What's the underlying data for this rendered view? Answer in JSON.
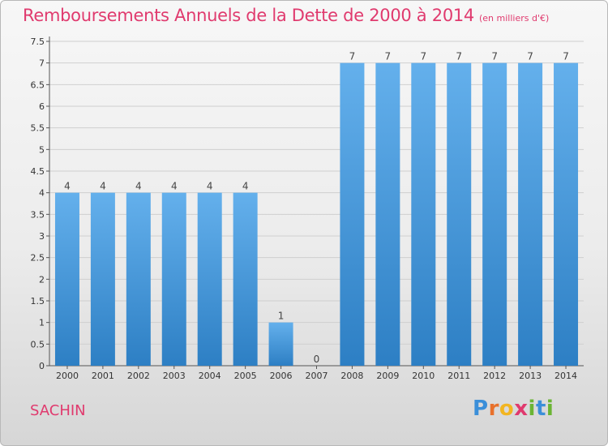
{
  "title": "Remboursements Annuels de la Dette de 2000 à 2014",
  "subtitle": "(en milliers d'€)",
  "place": "SACHIN",
  "brand": {
    "letters": [
      "P",
      "r",
      "o",
      "x",
      "i",
      "t",
      "i"
    ],
    "colors": [
      "#3b8fd9",
      "#e8712c",
      "#f2b521",
      "#e03a6e",
      "#6bb534",
      "#3b8fd9",
      "#6bb534"
    ]
  },
  "colors": {
    "title": "#e03a6e",
    "bar_top": "#64b0ec",
    "bar_bottom": "#2d7fc4"
  },
  "chart_data": {
    "type": "bar",
    "title": "Remboursements Annuels de la Dette de 2000 à 2014",
    "subtitle": "(en milliers d'€)",
    "categories": [
      "2000",
      "2001",
      "2002",
      "2003",
      "2004",
      "2005",
      "2006",
      "2007",
      "2008",
      "2009",
      "2010",
      "2011",
      "2012",
      "2013",
      "2014"
    ],
    "values": [
      4,
      4,
      4,
      4,
      4,
      4,
      1,
      0,
      7,
      7,
      7,
      7,
      7,
      7,
      7
    ],
    "data_labels": [
      "4",
      "4",
      "4",
      "4",
      "4",
      "4",
      "1",
      "0",
      "7",
      "7",
      "7",
      "7",
      "7",
      "7",
      "7"
    ],
    "yticks": [
      "0",
      "0.5",
      "1",
      "1.5",
      "2",
      "2.5",
      "3",
      "3.5",
      "4",
      "4.5",
      "5",
      "5.5",
      "6",
      "6.5",
      "7",
      "7.5"
    ],
    "ylim": [
      0,
      7.5
    ],
    "grid": true,
    "legend": "none"
  }
}
